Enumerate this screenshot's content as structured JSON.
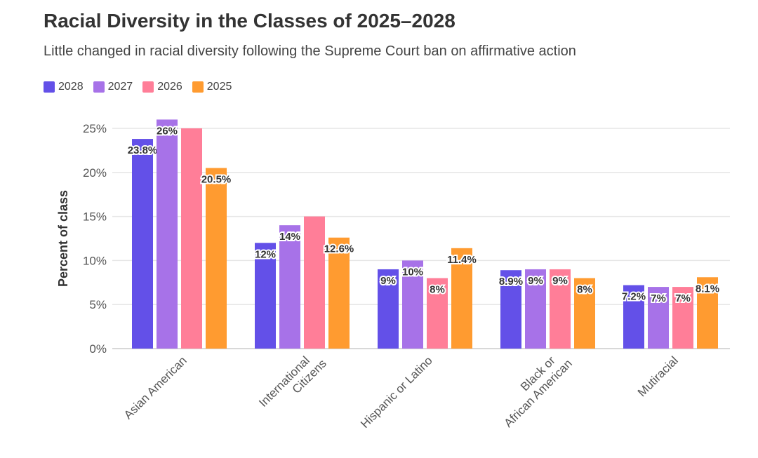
{
  "chart_data": {
    "type": "bar",
    "title": "Racial Diversity in the Classes of 2025–2028",
    "subtitle": "Little changed in racial diversity following the Supreme Court ban on affirmative action",
    "ylabel": "Percent of class",
    "xlabel": "",
    "ylim": [
      0,
      25
    ],
    "yticks": [
      "0%",
      "5%",
      "10%",
      "15%",
      "20%",
      "25%"
    ],
    "grid": true,
    "legend_position": "top-left",
    "categories": [
      "Asian American",
      "International Citizens",
      "Hispanic or Latino",
      "Black or African American",
      "Mutiracial"
    ],
    "series": [
      {
        "name": "2028",
        "color": "#6350e8",
        "values": [
          23.8,
          12,
          9,
          8.9,
          7.2
        ],
        "labels": [
          "23.8%",
          "12%",
          "9%",
          "8.9%",
          "7.2%"
        ]
      },
      {
        "name": "2027",
        "color": "#a772e8",
        "values": [
          26,
          14,
          10,
          9,
          7
        ],
        "labels": [
          "26%",
          "14%",
          "10%",
          "9%",
          "7%"
        ]
      },
      {
        "name": "2026",
        "color": "#ff7e98",
        "values": [
          25,
          15,
          8,
          9,
          7
        ],
        "labels": [
          "",
          "",
          "8%",
          "9%",
          "7%"
        ]
      },
      {
        "name": "2025",
        "color": "#ff9b30",
        "values": [
          20.5,
          12.6,
          11.4,
          8,
          8.1
        ],
        "labels": [
          "20.5%",
          "12.6%",
          "11.4%",
          "8%",
          "8.1%"
        ]
      }
    ]
  }
}
